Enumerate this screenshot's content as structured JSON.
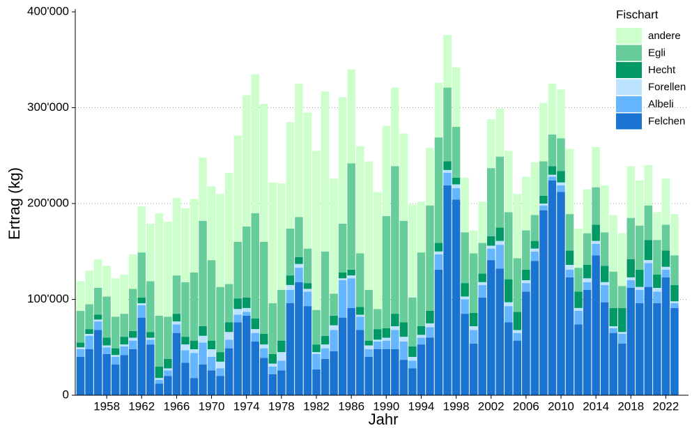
{
  "chart_data": {
    "type": "bar",
    "stacked": true,
    "x_label": "Jahr",
    "y_label": "Ertrag (kg)",
    "legend_title": "Fischart",
    "legend": "right",
    "x": [
      1955,
      1956,
      1957,
      1958,
      1959,
      1960,
      1961,
      1962,
      1963,
      1964,
      1965,
      1966,
      1967,
      1968,
      1969,
      1970,
      1971,
      1972,
      1973,
      1974,
      1975,
      1976,
      1977,
      1978,
      1979,
      1980,
      1981,
      1982,
      1983,
      1984,
      1985,
      1986,
      1987,
      1988,
      1989,
      1990,
      1991,
      1992,
      1993,
      1994,
      1995,
      1996,
      1997,
      1998,
      1999,
      2000,
      2001,
      2002,
      2003,
      2004,
      2005,
      2006,
      2007,
      2008,
      2009,
      2010,
      2011,
      2012,
      2013,
      2014,
      2015,
      2016,
      2017,
      2018,
      2019,
      2020,
      2021,
      2022,
      2023
    ],
    "xlim": [
      1954.4,
      2024.6
    ],
    "xticks": [
      1958,
      1962,
      1966,
      1970,
      1974,
      1978,
      1982,
      1986,
      1990,
      1994,
      1998,
      2002,
      2006,
      2010,
      2014,
      2018,
      2022
    ],
    "ylim": [
      0,
      400000
    ],
    "yticks": [
      0,
      {
        "value": 100000,
        "label": "100'000"
      },
      {
        "value": 200000,
        "label": "200'000"
      },
      {
        "value": 300000,
        "label": "300'000"
      },
      {
        "value": 400000,
        "label": "400'000"
      }
    ],
    "grid": true,
    "series": [
      {
        "name": "andere",
        "color": "#ccffcc",
        "values": [
          31000,
          35000,
          30000,
          32000,
          40000,
          41000,
          36000,
          48000,
          60000,
          107000,
          99000,
          81000,
          77000,
          77000,
          66000,
          77000,
          97000,
          116000,
          111000,
          137000,
          145000,
          144000,
          126000,
          111000,
          111000,
          139000,
          142000,
          166000,
          167000,
          120000,
          132000,
          98000,
          112000,
          134000,
          122000,
          94000,
          82000,
          91000,
          97000,
          53000,
          60000,
          57000,
          55000,
          62000,
          57000,
          24000,
          43000,
          51000,
          50000,
          64000,
          67000,
          56000,
          55000,
          61000,
          53000,
          51000,
          68000,
          41000,
          46000,
          42000,
          49000,
          59000,
          55000,
          54000,
          47000,
          42000,
          29000,
          48000,
          43000
        ]
      },
      {
        "name": "Egli",
        "color": "#66cc99",
        "values": [
          33000,
          26000,
          28000,
          43000,
          33000,
          24000,
          44000,
          47000,
          53000,
          53000,
          44000,
          40000,
          57000,
          71000,
          110000,
          84000,
          68000,
          40000,
          59000,
          74000,
          110000,
          96000,
          53000,
          53000,
          49000,
          42000,
          36000,
          36000,
          88000,
          23000,
          51000,
          111000,
          56000,
          53000,
          21000,
          117000,
          154000,
          106000,
          51000,
          77000,
          110000,
          110000,
          77000,
          53000,
          53000,
          62000,
          32000,
          71000,
          74000,
          70000,
          56000,
          41000,
          27000,
          36000,
          33000,
          34000,
          38000,
          25000,
          33000,
          39000,
          35000,
          38000,
          23000,
          43000,
          46000,
          36000,
          36000,
          27000,
          31000
        ]
      },
      {
        "name": "Hecht",
        "color": "#009966",
        "values": [
          5000,
          5000,
          5000,
          8000,
          7000,
          8000,
          7000,
          6000,
          6000,
          12000,
          10000,
          8000,
          8000,
          9000,
          10000,
          9000,
          10000,
          10000,
          11000,
          11000,
          11000,
          11000,
          10000,
          12000,
          10000,
          7000,
          6000,
          8000,
          9000,
          10000,
          6000,
          6000,
          8000,
          5000,
          11000,
          10000,
          13000,
          15000,
          11000,
          9000,
          13000,
          9000,
          9000,
          7000,
          14000,
          14000,
          9000,
          10000,
          14000,
          24000,
          19000,
          11000,
          8000,
          8000,
          9000,
          12000,
          15000,
          17000,
          14000,
          17000,
          17000,
          19000,
          25000,
          19000,
          18000,
          21000,
          14000,
          17000,
          17000
        ]
      },
      {
        "name": "Forellen",
        "color": "#bbe3ff",
        "values": [
          2000,
          2000,
          2000,
          2000,
          2000,
          2000,
          3000,
          2000,
          2000,
          2000,
          2000,
          3000,
          6000,
          4000,
          7000,
          8000,
          7000,
          8000,
          6000,
          4000,
          4000,
          4000,
          3000,
          9000,
          5000,
          4000,
          3000,
          2000,
          4000,
          5000,
          2000,
          3000,
          2000,
          4000,
          2000,
          3000,
          4000,
          5000,
          4000,
          3000,
          4000,
          3000,
          3000,
          4000,
          3000,
          4000,
          3000,
          3000,
          4000,
          4000,
          3000,
          3000,
          3000,
          2000,
          2000,
          3000,
          5000,
          3000,
          4000,
          3000,
          3000,
          2000,
          2000,
          3000,
          3000,
          3000,
          4000,
          3000,
          2000
        ]
      },
      {
        "name": "Albeli",
        "color": "#66b5ff",
        "values": [
          8000,
          14000,
          9000,
          7000,
          8000,
          9000,
          9000,
          13000,
          5000,
          4000,
          6000,
          9000,
          13000,
          26000,
          23000,
          14000,
          8000,
          9000,
          8000,
          4000,
          9000,
          10000,
          8000,
          10000,
          14000,
          15000,
          15000,
          16000,
          11000,
          22000,
          39000,
          31000,
          14000,
          8000,
          8000,
          9000,
          20000,
          19000,
          8000,
          7000,
          11000,
          16000,
          13000,
          12000,
          15000,
          14000,
          13000,
          12000,
          25000,
          17000,
          8000,
          9000,
          10000,
          5000,
          4000,
          7000,
          8000,
          14000,
          8000,
          12000,
          18000,
          5000,
          10000,
          8000,
          14000,
          25000,
          12000,
          8000,
          5000
        ]
      },
      {
        "name": "Felchen",
        "color": "#1a73d0",
        "values": [
          40000,
          48000,
          68000,
          43000,
          32000,
          42000,
          48000,
          81000,
          53000,
          12000,
          20000,
          65000,
          34000,
          18000,
          32000,
          26000,
          20000,
          49000,
          76000,
          83000,
          56000,
          39000,
          22000,
          26000,
          96000,
          118000,
          93000,
          27000,
          38000,
          46000,
          81000,
          91000,
          68000,
          40000,
          48000,
          48000,
          48000,
          37000,
          28000,
          53000,
          60000,
          131000,
          219000,
          204000,
          85000,
          54000,
          102000,
          141000,
          132000,
          76000,
          57000,
          108000,
          140000,
          193000,
          224000,
          212000,
          123000,
          74000,
          110000,
          146000,
          97000,
          65000,
          54000,
          112000,
          96000,
          113000,
          96000,
          123000,
          91000
        ]
      }
    ]
  }
}
